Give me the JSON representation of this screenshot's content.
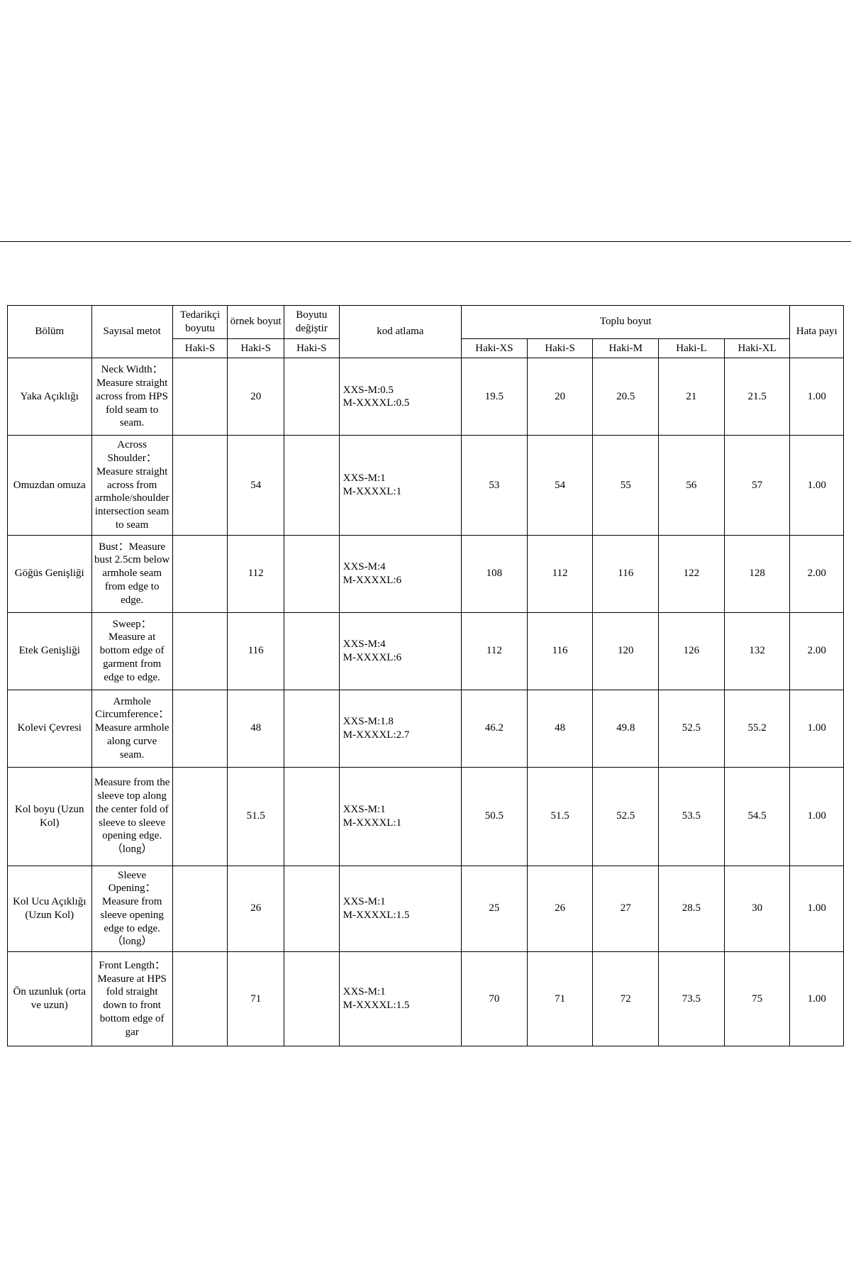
{
  "headers": {
    "bolum": "Bölüm",
    "sayisal_metot": "Sayısal metot",
    "tedarikci": "Tedarikçi boyutu",
    "ornek_boyut": "örnek boyut",
    "boyutu_degistir": "Boyutu değiştir",
    "kod_atlama": "kod atlama",
    "toplu_boyut": "Toplu boyut",
    "hata_payi": "Hata payı",
    "sub_hakiS_1": "Haki-S",
    "sub_hakiS_2": "Haki-S",
    "sub_hakiS_3": "Haki-S",
    "size_XS": "Haki-XS",
    "size_S": "Haki-S",
    "size_M": "Haki-M",
    "size_L": "Haki-L",
    "size_XL": "Haki-XL"
  },
  "rows": [
    {
      "bolum": "Yaka Açıklığı",
      "method": "Neck Width：Measure straight across from HPS fold seam to seam.",
      "tedarikci": "",
      "ornek": "20",
      "degis": "",
      "kod1": "XXS-M:0.5",
      "kod2": "M-XXXXL:0.5",
      "xs": "19.5",
      "s": "20",
      "m": "20.5",
      "l": "21",
      "xl": "21.5",
      "hata": "1.00"
    },
    {
      "bolum": "Omuzdan omuza",
      "method": "Across Shoulder：Measure straight across from armhole/shoulder intersection seam to seam",
      "tedarikci": "",
      "ornek": "54",
      "degis": "",
      "kod1": "XXS-M:1",
      "kod2": "M-XXXXL:1",
      "xs": "53",
      "s": "54",
      "m": "55",
      "l": "56",
      "xl": "57",
      "hata": "1.00"
    },
    {
      "bolum": "Göğüs Genişliği",
      "method": "Bust：Measure bust 2.5cm below armhole seam from edge to edge.",
      "tedarikci": "",
      "ornek": "112",
      "degis": "",
      "kod1": "XXS-M:4",
      "kod2": "M-XXXXL:6",
      "xs": "108",
      "s": "112",
      "m": "116",
      "l": "122",
      "xl": "128",
      "hata": "2.00"
    },
    {
      "bolum": "Etek Genişliği",
      "method": "Sweep： Measure at bottom edge of garment from edge to edge.",
      "tedarikci": "",
      "ornek": "116",
      "degis": "",
      "kod1": "XXS-M:4",
      "kod2": "M-XXXXL:6",
      "xs": "112",
      "s": "116",
      "m": "120",
      "l": "126",
      "xl": "132",
      "hata": "2.00"
    },
    {
      "bolum": "Kolevi Çevresi",
      "method": "Armhole Circumference：Measure armhole along curve seam.",
      "tedarikci": "",
      "ornek": "48",
      "degis": "",
      "kod1": "XXS-M:1.8",
      "kod2": "M-XXXXL:2.7",
      "xs": "46.2",
      "s": "48",
      "m": "49.8",
      "l": "52.5",
      "xl": "55.2",
      "hata": "1.00"
    },
    {
      "bolum": "Kol boyu (Uzun Kol)",
      "method": "Measure from the sleeve top along the center fold of sleeve to sleeve opening edge.（long）",
      "tedarikci": "",
      "ornek": "51.5",
      "degis": "",
      "kod1": "XXS-M:1",
      "kod2": "M-XXXXL:1",
      "xs": "50.5",
      "s": "51.5",
      "m": "52.5",
      "l": "53.5",
      "xl": "54.5",
      "hata": "1.00"
    },
    {
      "bolum": "Kol Ucu Açıklığı (Uzun Kol)",
      "method": "Sleeve Opening：Measure from sleeve opening edge to edge.（long）",
      "tedarikci": "",
      "ornek": "26",
      "degis": "",
      "kod1": "XXS-M:1",
      "kod2": "M-XXXXL:1.5",
      "xs": "25",
      "s": "26",
      "m": "27",
      "l": "28.5",
      "xl": "30",
      "hata": "1.00"
    },
    {
      "bolum": "Ön uzunluk (orta ve uzun)",
      "method": "Front Length：Measure at HPS fold straight down to front bottom edge of gar",
      "tedarikci": "",
      "ornek": "71",
      "degis": "",
      "kod1": "XXS-M:1",
      "kod2": "M-XXXXL:1.5",
      "xs": "70",
      "s": "71",
      "m": "72",
      "l": "73.5",
      "xl": "75",
      "hata": "1.00"
    }
  ]
}
